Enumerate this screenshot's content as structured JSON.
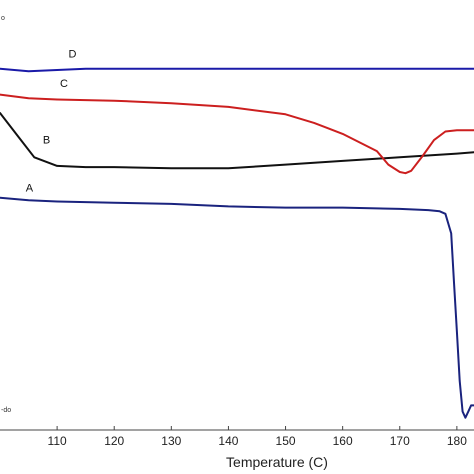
{
  "chart_data": {
    "type": "line",
    "title": "",
    "xlabel": "Temperature (C)",
    "ylabel": "",
    "xlim": [
      100,
      183
    ],
    "ylim": [
      -27,
      8
    ],
    "x_ticks": [
      110,
      120,
      130,
      140,
      150,
      160,
      170,
      180
    ],
    "edge_marks": {
      "top": "o",
      "bottom": "-do"
    },
    "grid": false,
    "legend": "none",
    "series": [
      {
        "name": "A",
        "color": "#1a237e",
        "x": [
          100,
          105,
          110,
          120,
          130,
          140,
          150,
          160,
          170,
          175,
          177,
          178,
          179,
          179.5,
          180,
          180.5,
          181,
          181.5,
          182,
          182.5,
          183
        ],
        "y": [
          -8.1,
          -8.3,
          -8.4,
          -8.5,
          -8.6,
          -8.8,
          -8.9,
          -8.9,
          -9.0,
          -9.1,
          -9.2,
          -9.4,
          -11.0,
          -15.0,
          -19.0,
          -23.0,
          -25.5,
          -26.0,
          -25.5,
          -25.0,
          -25.0
        ]
      },
      {
        "name": "B",
        "color": "#111111",
        "x": [
          100,
          103,
          106,
          110,
          115,
          120,
          130,
          140,
          150,
          160,
          170,
          180,
          183
        ],
        "y": [
          -1.2,
          -3.0,
          -4.8,
          -5.5,
          -5.6,
          -5.6,
          -5.7,
          -5.7,
          -5.4,
          -5.1,
          -4.8,
          -4.5,
          -4.4
        ]
      },
      {
        "name": "C",
        "color": "#cc1f1f",
        "x": [
          100,
          105,
          110,
          120,
          130,
          140,
          150,
          155,
          160,
          163,
          166,
          168,
          170,
          171,
          172,
          174,
          176,
          178,
          180,
          183
        ],
        "y": [
          0.3,
          0.0,
          -0.1,
          -0.2,
          -0.4,
          -0.7,
          -1.3,
          -2.0,
          -2.9,
          -3.6,
          -4.3,
          -5.4,
          -6.0,
          -6.1,
          -5.9,
          -4.7,
          -3.4,
          -2.7,
          -2.6,
          -2.6
        ]
      },
      {
        "name": "D",
        "color": "#1a1aa8",
        "x": [
          100,
          105,
          110,
          115,
          120,
          130,
          140,
          150,
          160,
          170,
          180,
          183
        ],
        "y": [
          2.4,
          2.2,
          2.3,
          2.4,
          2.4,
          2.4,
          2.4,
          2.4,
          2.4,
          2.4,
          2.4,
          2.4
        ]
      }
    ],
    "annotations": [
      {
        "text": "A",
        "x": 104.5,
        "y": -7.6
      },
      {
        "text": "B",
        "x": 107.5,
        "y": -3.7
      },
      {
        "text": "C",
        "x": 110.5,
        "y": 0.9
      },
      {
        "text": "D",
        "x": 112.0,
        "y": 3.3
      }
    ]
  }
}
